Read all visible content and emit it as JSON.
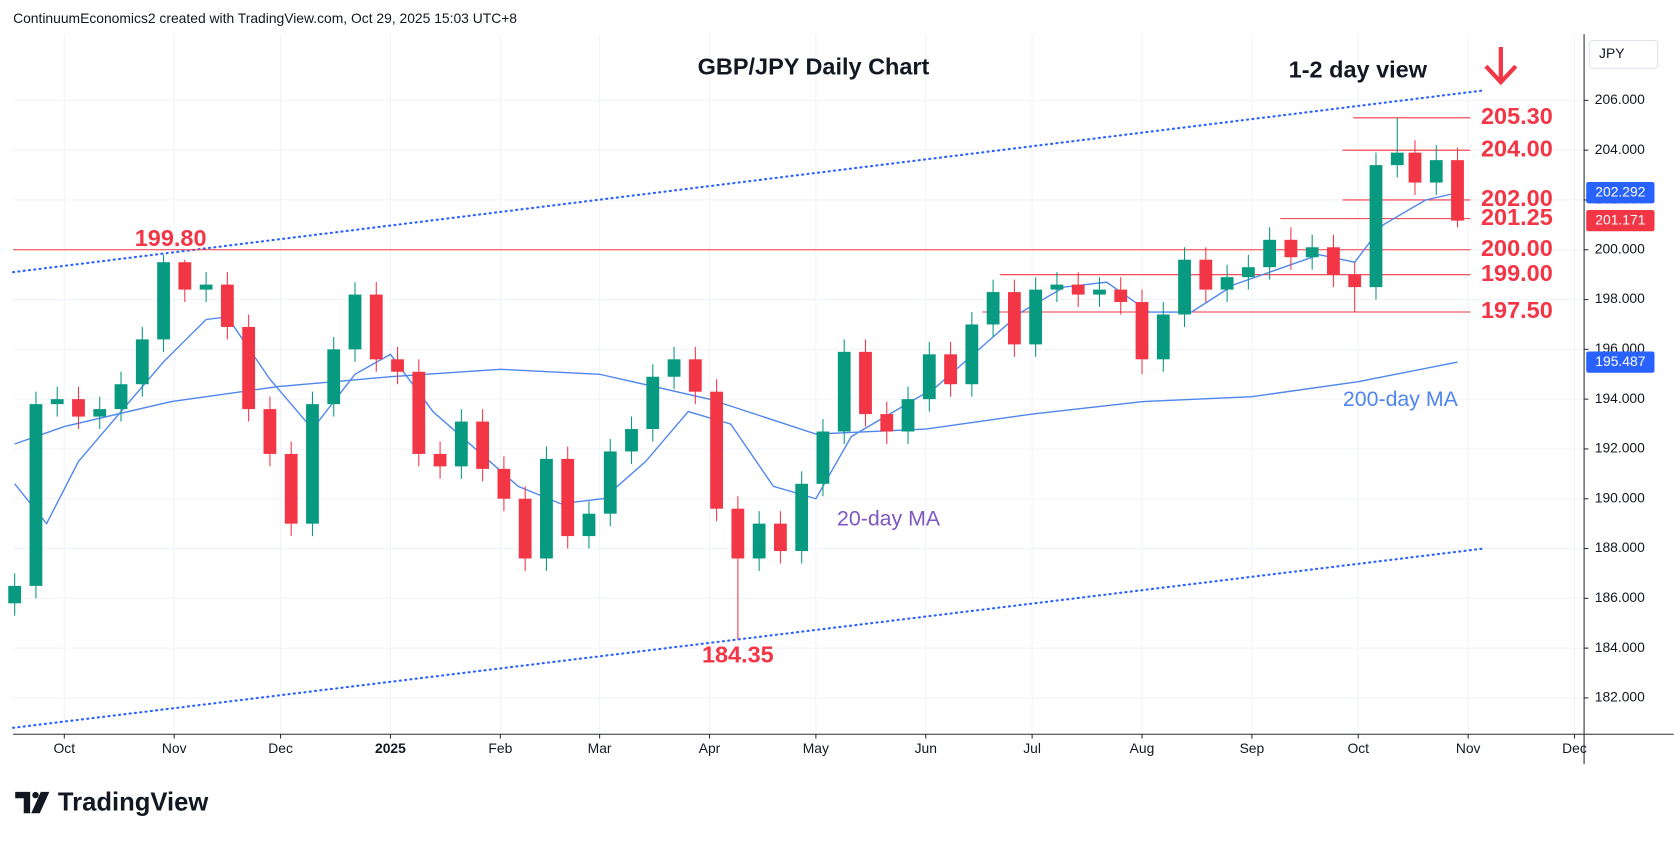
{
  "header": "ContinuumEconomics2 created with TradingView.com, Oct 29, 2025 15:03 UTC+8",
  "chart_data": {
    "type": "candlestick",
    "title": "GBP/JPY Daily Chart",
    "subtitle": "1-2 day view",
    "currency": "JPY",
    "x": [
      -14,
      -8,
      -2,
      4,
      10,
      16,
      22,
      28,
      34,
      40,
      46,
      52,
      58,
      64,
      70,
      76,
      82,
      88,
      94,
      100,
      106,
      112,
      118,
      124,
      130,
      136,
      142,
      148,
      154,
      160,
      166,
      172,
      178,
      184,
      190,
      196,
      202,
      208,
      214,
      220,
      226,
      232,
      238,
      244,
      250,
      256,
      262,
      268,
      274,
      280,
      286,
      292,
      298,
      304,
      310,
      316,
      322,
      328,
      334,
      340,
      346,
      352,
      358,
      364,
      370,
      376,
      381,
      387,
      393
    ],
    "open": [
      185.8,
      186.5,
      193.8,
      194.0,
      193.3,
      193.6,
      194.6,
      196.4,
      199.5,
      198.4,
      198.6,
      196.9,
      193.6,
      191.8,
      189.0,
      193.8,
      196.0,
      198.2,
      195.6,
      195.1,
      191.8,
      191.3,
      193.1,
      191.2,
      190.0,
      187.6,
      191.6,
      188.5,
      189.4,
      191.9,
      192.8,
      194.9,
      195.6,
      194.3,
      189.6,
      187.6,
      189.0,
      187.9,
      190.6,
      192.7,
      195.9,
      193.4,
      192.7,
      194.0,
      195.8,
      194.6,
      197.0,
      198.3,
      196.2,
      198.4,
      198.6,
      198.2,
      198.4,
      197.9,
      195.6,
      197.4,
      199.6,
      198.4,
      198.9,
      199.3,
      200.4,
      199.7,
      200.1,
      199.0,
      198.5,
      203.4,
      203.9,
      202.7,
      203.6
    ],
    "high": [
      187.0,
      194.3,
      194.5,
      194.5,
      194.1,
      195.1,
      196.9,
      199.8,
      199.6,
      199.1,
      199.1,
      197.4,
      194.1,
      192.3,
      194.3,
      196.5,
      198.7,
      198.7,
      196.1,
      195.6,
      192.3,
      193.6,
      193.6,
      191.7,
      190.5,
      192.1,
      192.1,
      189.9,
      192.4,
      193.3,
      195.4,
      196.1,
      196.1,
      194.8,
      190.1,
      189.5,
      189.5,
      191.1,
      193.2,
      196.4,
      196.4,
      193.9,
      194.5,
      196.3,
      196.3,
      197.5,
      198.8,
      198.8,
      198.9,
      199.1,
      199.1,
      198.9,
      198.9,
      198.4,
      197.9,
      200.1,
      200.1,
      199.4,
      199.8,
      200.9,
      200.9,
      200.6,
      200.6,
      199.5,
      203.9,
      205.3,
      204.4,
      204.2,
      204.1
    ],
    "low": [
      185.3,
      186.0,
      193.3,
      192.8,
      192.8,
      193.1,
      194.1,
      195.9,
      197.9,
      197.9,
      196.4,
      193.1,
      191.3,
      188.5,
      188.5,
      193.3,
      195.5,
      195.1,
      194.6,
      191.3,
      190.8,
      190.8,
      190.7,
      189.5,
      187.1,
      187.1,
      188.0,
      188.0,
      188.9,
      191.4,
      192.3,
      194.4,
      193.8,
      189.1,
      184.35,
      187.1,
      187.4,
      187.4,
      190.1,
      192.2,
      192.9,
      192.2,
      192.2,
      193.5,
      194.1,
      194.1,
      196.5,
      195.7,
      195.7,
      197.9,
      197.7,
      197.7,
      197.4,
      195.0,
      195.1,
      196.9,
      197.9,
      197.9,
      198.4,
      198.8,
      199.2,
      199.2,
      198.5,
      197.5,
      198.0,
      202.9,
      202.2,
      202.2,
      200.9
    ],
    "close": [
      186.5,
      193.8,
      194.0,
      193.3,
      193.6,
      194.6,
      196.4,
      199.5,
      198.4,
      198.6,
      196.9,
      193.6,
      191.8,
      189.0,
      193.8,
      196.0,
      198.2,
      195.6,
      195.1,
      191.8,
      191.3,
      193.1,
      191.2,
      190.0,
      187.6,
      191.6,
      188.5,
      189.4,
      191.9,
      192.8,
      194.9,
      195.6,
      194.3,
      189.6,
      187.6,
      189.0,
      187.9,
      190.6,
      192.7,
      195.9,
      193.4,
      192.7,
      194.0,
      195.8,
      194.6,
      197.0,
      198.3,
      196.2,
      198.4,
      198.6,
      198.2,
      198.4,
      197.9,
      195.6,
      197.4,
      199.6,
      198.4,
      198.9,
      199.3,
      200.4,
      199.7,
      200.1,
      199.0,
      198.5,
      203.4,
      203.9,
      202.7,
      203.6,
      201.17
    ],
    "up_color": "#089981",
    "down_color": "#f23645",
    "series": [
      {
        "name": "20-day MA",
        "color": "#4f86ee",
        "label_color": "#7e57c2",
        "x": [
          -14,
          -5,
          4,
          16,
          28,
          40,
          46,
          58,
          70,
          82,
          92,
          104,
          116,
          128,
          140,
          152,
          164,
          176,
          188,
          200,
          212,
          222,
          234,
          246,
          258,
          270,
          282,
          294,
          306,
          318,
          330,
          342,
          354,
          364,
          372,
          384,
          393
        ],
        "values": [
          190.6,
          189.0,
          191.5,
          193.5,
          195.5,
          197.2,
          197.3,
          194.8,
          192.8,
          195.0,
          195.8,
          193.5,
          192.0,
          190.5,
          189.8,
          190.0,
          191.5,
          193.5,
          193.0,
          190.5,
          190.0,
          192.5,
          193.5,
          194.5,
          196.0,
          197.5,
          198.5,
          198.7,
          197.5,
          197.5,
          198.6,
          199.2,
          199.8,
          199.5,
          201.0,
          202.0,
          202.29
        ]
      },
      {
        "name": "200-day MA",
        "color": "#4f86ee",
        "label_color": "#4f86ee",
        "x": [
          -14,
          0,
          30,
          60,
          92,
          123,
          151,
          182,
          212,
          243,
          273,
          304,
          335,
          365,
          393
        ],
        "values": [
          192.2,
          192.9,
          193.9,
          194.5,
          194.9,
          195.2,
          195.0,
          194.0,
          192.6,
          192.8,
          193.4,
          193.9,
          194.1,
          194.7,
          195.49
        ]
      }
    ],
    "levels": [
      {
        "value": 205.3,
        "label": "205.30",
        "start": 363.6
      },
      {
        "value": 204.0,
        "label": "204.00",
        "start": 360.6
      },
      {
        "value": 202.0,
        "label": "202.00",
        "start": 360.6
      },
      {
        "value": 201.25,
        "label": "201.25",
        "start": 343
      },
      {
        "value": 200.0,
        "label": "200.00",
        "start": -14.45
      },
      {
        "value": 199.0,
        "label": "199.00",
        "start": 264
      },
      {
        "value": 197.5,
        "label": "197.50",
        "start": 259
      }
    ],
    "annotations": [
      {
        "value": 199.8,
        "label": "199.80",
        "x": 30
      },
      {
        "value": 184.35,
        "label": "184.35",
        "x": 190
      }
    ],
    "channel": [
      {
        "x": [
          -14.45,
          400.4
        ],
        "values": [
          199.1,
          206.4
        ]
      },
      {
        "x": [
          -14.45,
          400.4
        ],
        "values": [
          180.8,
          188.0
        ]
      }
    ],
    "price_badges": [
      {
        "value": 202.292,
        "label": "202.292",
        "color": "#2962ff"
      },
      {
        "value": 201.171,
        "label": "201.171",
        "color": "#f23645"
      },
      {
        "value": 195.487,
        "label": "195.487",
        "color": "#2962ff"
      }
    ],
    "xlim": [
      -14.45,
      428.7
    ],
    "ylim": [
      180.54,
      208.66
    ],
    "xticks": [
      {
        "value": 0,
        "label": "Oct"
      },
      {
        "value": 31,
        "label": "Nov"
      },
      {
        "value": 61,
        "label": "Dec"
      },
      {
        "value": 92,
        "label": "2025"
      },
      {
        "value": 123,
        "label": "Feb"
      },
      {
        "value": 151,
        "label": "Mar"
      },
      {
        "value": 182,
        "label": "Apr"
      },
      {
        "value": 212,
        "label": "May"
      },
      {
        "value": 243,
        "label": "Jun"
      },
      {
        "value": 273,
        "label": "Jul"
      },
      {
        "value": 304,
        "label": "Aug"
      },
      {
        "value": 335,
        "label": "Sep"
      },
      {
        "value": 365,
        "label": "Oct"
      },
      {
        "value": 396,
        "label": "Nov"
      },
      {
        "value": 426,
        "label": "Dec"
      }
    ],
    "yticks": [
      {
        "value": 182,
        "label": "182.000"
      },
      {
        "value": 184,
        "label": "184.000"
      },
      {
        "value": 186,
        "label": "186.000"
      },
      {
        "value": 188,
        "label": "188.000"
      },
      {
        "value": 190,
        "label": "190.000"
      },
      {
        "value": 192,
        "label": "192.000"
      },
      {
        "value": 194,
        "label": "194.000"
      },
      {
        "value": 196,
        "label": "196.000"
      },
      {
        "value": 198,
        "label": "198.000"
      },
      {
        "value": 200,
        "label": "200.000"
      },
      {
        "value": 202,
        "label": "202.000"
      },
      {
        "value": 204,
        "label": "204.000"
      },
      {
        "value": 206,
        "label": "206.000"
      }
    ],
    "grid": true
  },
  "footer": {
    "brand": "TradingView"
  }
}
